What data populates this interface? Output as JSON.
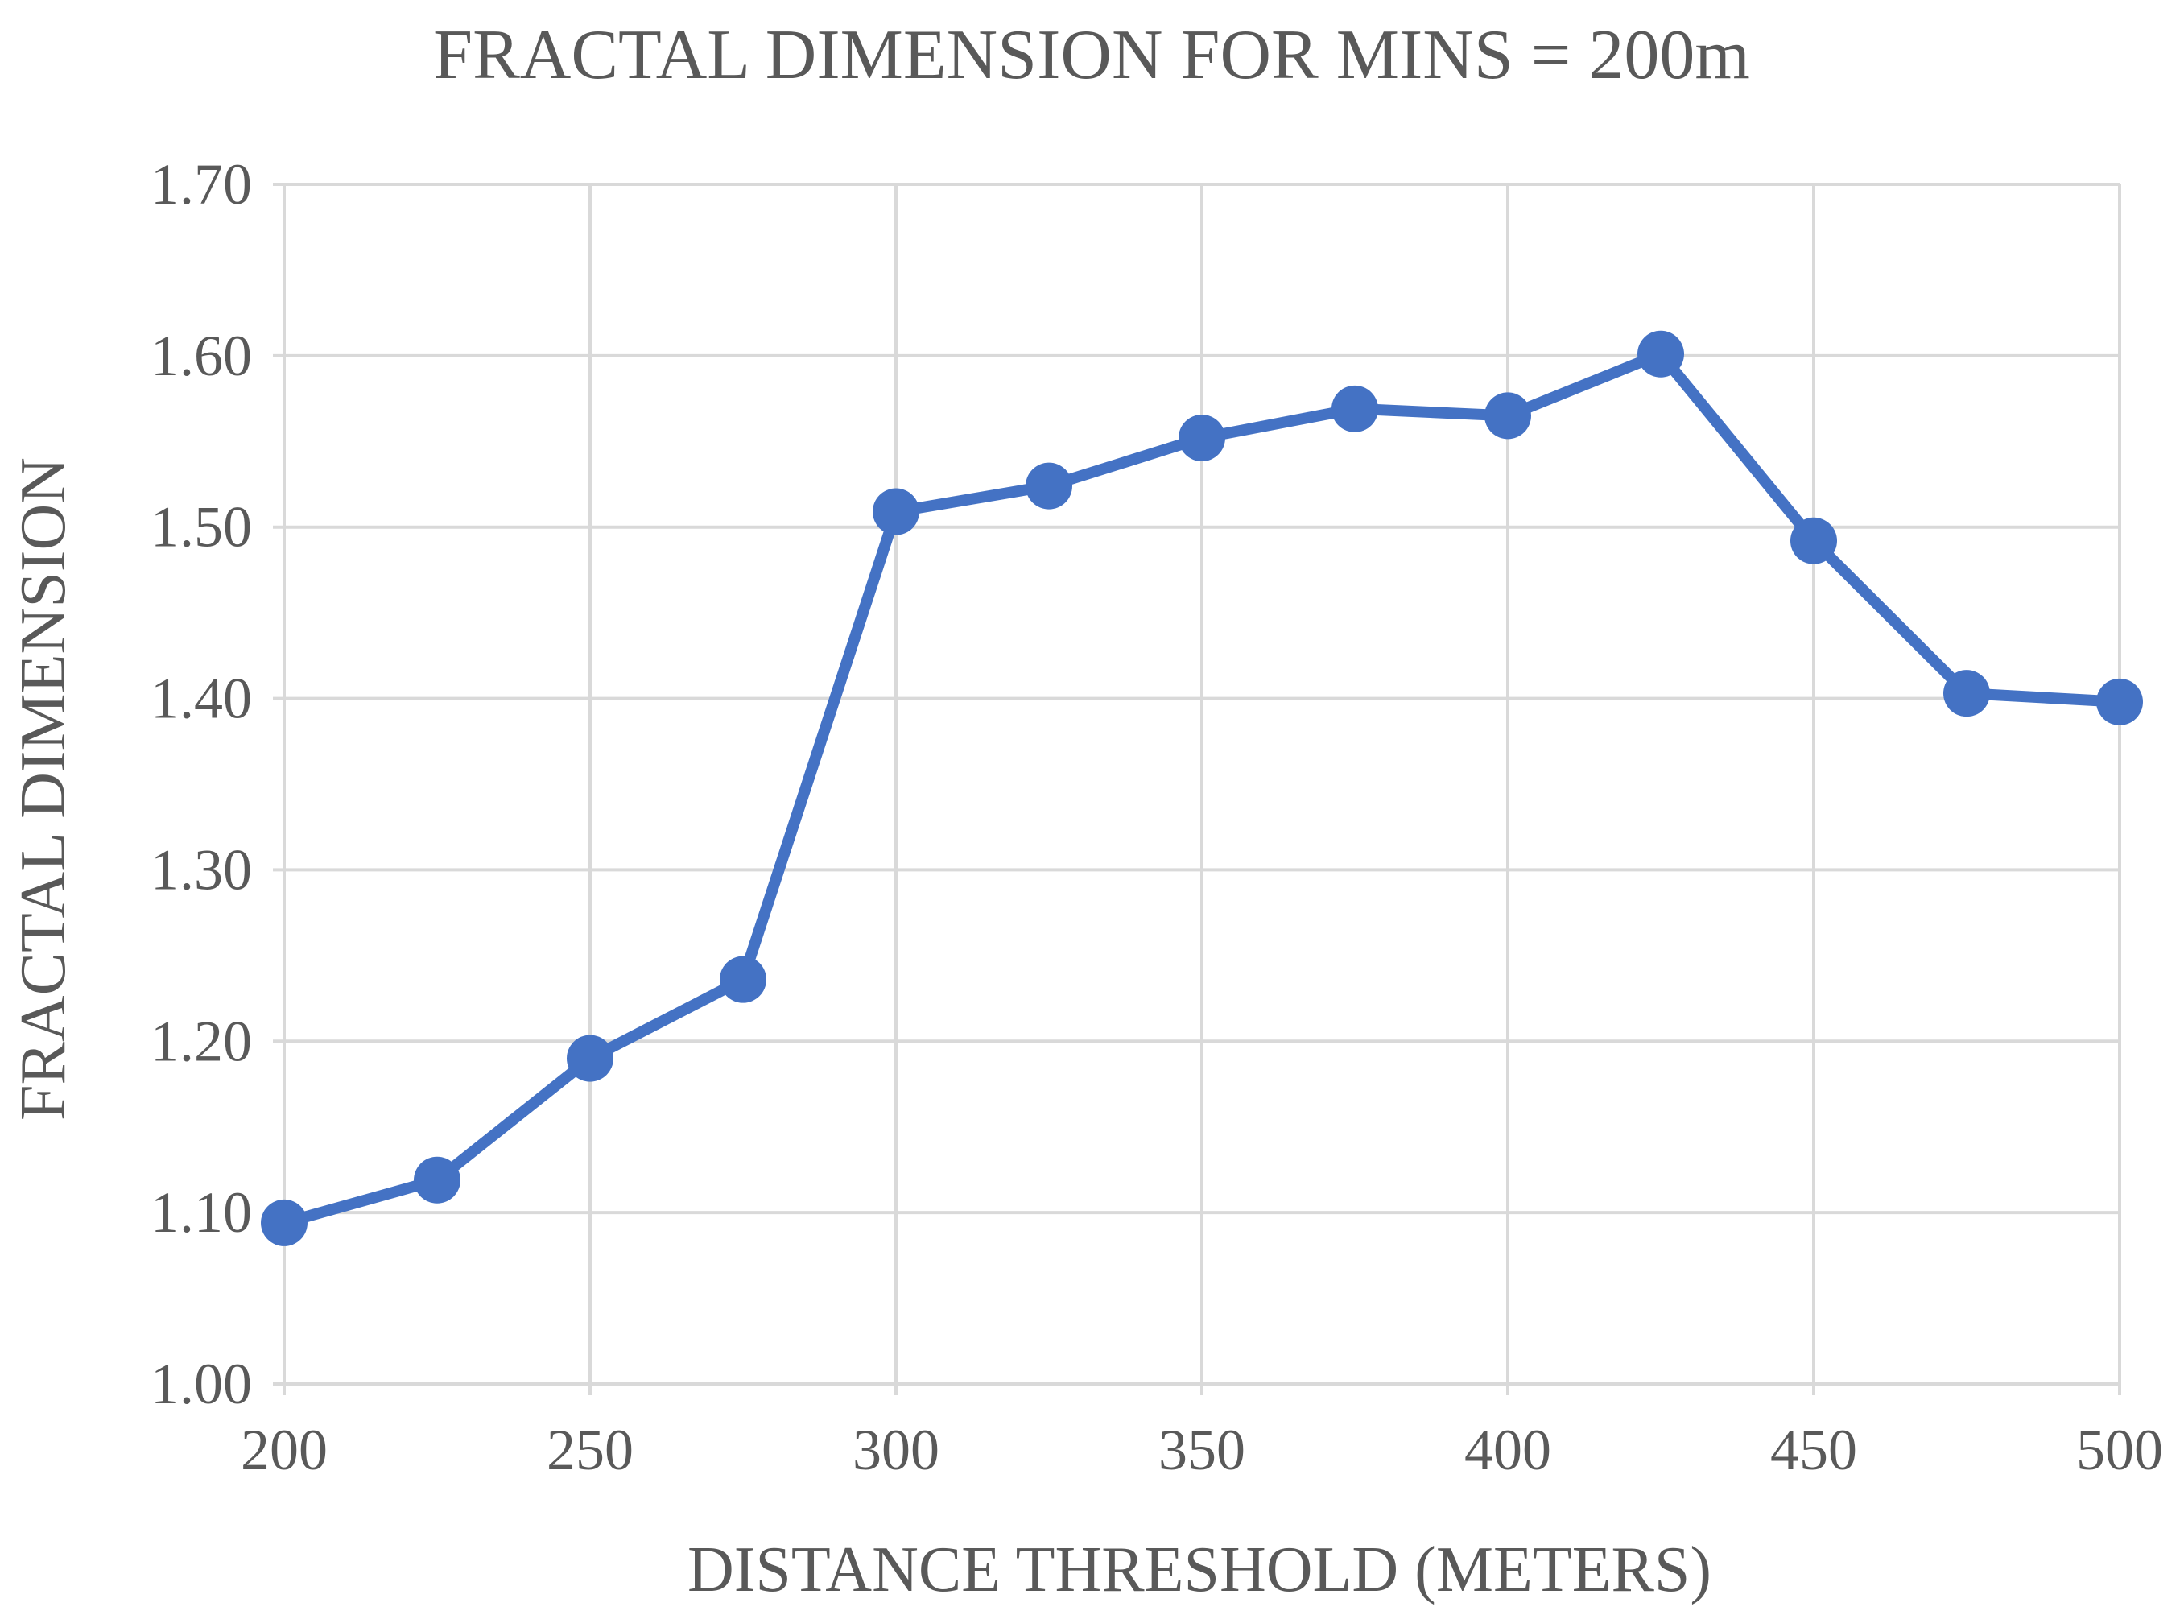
{
  "chart_data": {
    "type": "line",
    "title": "FRACTAL DIMENSION FOR MINS = 200m",
    "xlabel": "DISTANCE THRESHOLD (METERS)",
    "ylabel": "FRACTAL DIMENSION",
    "x": [
      200,
      225,
      250,
      275,
      300,
      325,
      350,
      375,
      400,
      425,
      450,
      475,
      500
    ],
    "series": [
      {
        "name": "",
        "values": [
          1.094,
          1.119,
          1.19,
          1.236,
          1.509,
          1.524,
          1.552,
          1.569,
          1.565,
          1.601,
          1.492,
          1.403,
          1.398
        ]
      }
    ],
    "xlim": [
      200,
      500
    ],
    "ylim": [
      1.0,
      1.7
    ],
    "x_ticks": [
      "200",
      "250",
      "300",
      "350",
      "400",
      "450",
      "500"
    ],
    "y_ticks": [
      "1.00",
      "1.10",
      "1.20",
      "1.30",
      "1.40",
      "1.50",
      "1.60",
      "1.70"
    ],
    "grid": true,
    "legend": "none",
    "colors": {
      "series": "#4472C4",
      "grid": "#D9D9D9",
      "text": "#595959"
    }
  }
}
